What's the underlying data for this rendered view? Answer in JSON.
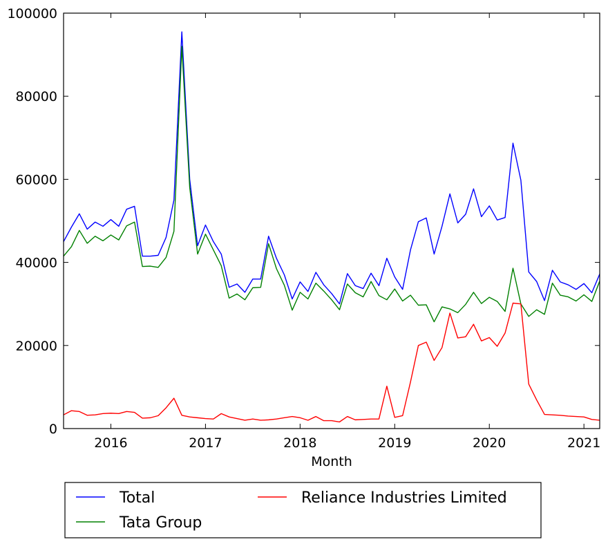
{
  "chart_data": {
    "type": "line",
    "title": "",
    "xlabel": "Month",
    "ylabel": "",
    "x": [
      "2015-07",
      "2015-08",
      "2015-09",
      "2015-10",
      "2015-11",
      "2015-12",
      "2016-01",
      "2016-02",
      "2016-03",
      "2016-04",
      "2016-05",
      "2016-06",
      "2016-07",
      "2016-08",
      "2016-09",
      "2016-10",
      "2016-11",
      "2016-12",
      "2017-01",
      "2017-02",
      "2017-03",
      "2017-04",
      "2017-05",
      "2017-06",
      "2017-07",
      "2017-08",
      "2017-09",
      "2017-10",
      "2017-11",
      "2017-12",
      "2018-01",
      "2018-02",
      "2018-03",
      "2018-04",
      "2018-05",
      "2018-06",
      "2018-07",
      "2018-08",
      "2018-09",
      "2018-10",
      "2018-11",
      "2018-12",
      "2019-01",
      "2019-02",
      "2019-03",
      "2019-04",
      "2019-05",
      "2019-06",
      "2019-07",
      "2019-08",
      "2019-09",
      "2019-10",
      "2019-11",
      "2019-12",
      "2020-01",
      "2020-02",
      "2020-03",
      "2020-04",
      "2020-05",
      "2020-06",
      "2020-07",
      "2020-08",
      "2020-09",
      "2020-10",
      "2020-11",
      "2020-12",
      "2021-01",
      "2021-02",
      "2021-03"
    ],
    "series": [
      {
        "name": "Total",
        "color": "#0000ff",
        "values": [
          45000,
          48500,
          51700,
          48000,
          49700,
          48700,
          50300,
          48700,
          52800,
          53500,
          41500,
          41500,
          41700,
          46000,
          55000,
          95500,
          60000,
          44000,
          49000,
          45000,
          42000,
          34000,
          34800,
          32800,
          36000,
          36000,
          46300,
          41000,
          37000,
          31200,
          35300,
          33000,
          37600,
          34600,
          32500,
          30000,
          37300,
          34400,
          33700,
          37400,
          34400,
          41000,
          36500,
          33500,
          43000,
          49800,
          50700,
          42000,
          48700,
          56500,
          49500,
          51600,
          57700,
          51000,
          53600,
          50200,
          50800,
          68700,
          59800,
          37700,
          35400,
          30800,
          38100,
          35300,
          34600,
          33500,
          34900,
          32700,
          37200
        ]
      },
      {
        "name": "Tata Group",
        "color": "#008000",
        "values": [
          41500,
          43800,
          47700,
          44600,
          46300,
          45200,
          46600,
          45400,
          48800,
          49700,
          39000,
          39100,
          38800,
          41200,
          47500,
          92000,
          58000,
          42000,
          46800,
          43000,
          39200,
          31400,
          32400,
          31000,
          33900,
          34000,
          44500,
          38500,
          34500,
          28500,
          32800,
          31200,
          35000,
          33100,
          31000,
          28600,
          34800,
          32700,
          31700,
          35400,
          32000,
          31000,
          33600,
          30700,
          32100,
          29700,
          29800,
          25700,
          29300,
          28800,
          27900,
          29900,
          32800,
          30100,
          31600,
          30600,
          28200,
          38600,
          30000,
          27000,
          28600,
          27500,
          35000,
          32100,
          31700,
          30700,
          32200,
          30600,
          35500
        ]
      },
      {
        "name": "Reliance Industries Limited",
        "color": "#ff0000",
        "values": [
          3300,
          4300,
          4100,
          3200,
          3300,
          3600,
          3700,
          3600,
          4100,
          3900,
          2500,
          2600,
          3100,
          5000,
          7300,
          3200,
          2800,
          2600,
          2400,
          2300,
          3600,
          2800,
          2400,
          2000,
          2300,
          2000,
          2100,
          2300,
          2600,
          2900,
          2600,
          2000,
          2900,
          1900,
          1900,
          1600,
          2900,
          2100,
          2200,
          2300,
          2300,
          10200,
          2700,
          3100,
          11200,
          20000,
          20800,
          16400,
          19500,
          27800,
          21800,
          22100,
          25100,
          21100,
          21900,
          19800,
          23000,
          30200,
          30000,
          10700,
          6900,
          3400,
          3300,
          3200,
          3000,
          2900,
          2800,
          2200,
          2000
        ]
      }
    ],
    "xticks": [
      {
        "date": "2016-01",
        "label": "2016"
      },
      {
        "date": "2017-01",
        "label": "2017"
      },
      {
        "date": "2018-01",
        "label": "2018"
      },
      {
        "date": "2019-01",
        "label": "2019"
      },
      {
        "date": "2020-01",
        "label": "2020"
      },
      {
        "date": "2021-01",
        "label": "2021"
      }
    ],
    "yticks": [
      0,
      20000,
      40000,
      60000,
      80000,
      100000
    ],
    "xlim": [
      "2015-07",
      "2021-03"
    ],
    "ylim": [
      0,
      100000
    ],
    "grid": false,
    "legend": {
      "placement": "below",
      "entries": [
        "Total",
        "Tata Group",
        "Reliance Industries Limited"
      ]
    }
  }
}
